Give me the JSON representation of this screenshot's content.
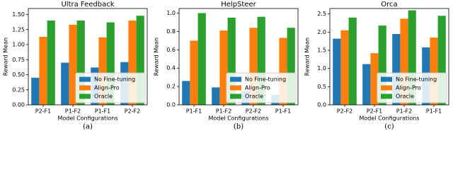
{
  "chart_data": [
    {
      "type": "bar",
      "title": "Ultra Feedback",
      "caption": "(a)",
      "x_label": "Model Configurations",
      "y_label": "Reward Mean",
      "categories": [
        "P2-F1",
        "P1-F2",
        "P1-F1",
        "P2-F2"
      ],
      "series": [
        {
          "name": "No Fine-tuning",
          "color": "#1f77b4",
          "values": [
            0.45,
            0.7,
            0.62,
            0.71
          ]
        },
        {
          "name": "Align-Pro",
          "color": "#ff7f0e",
          "values": [
            1.13,
            1.33,
            1.12,
            1.4
          ]
        },
        {
          "name": "Oracle",
          "color": "#2ca02c",
          "values": [
            1.4,
            1.4,
            1.37,
            1.48
          ]
        }
      ],
      "ylim": [
        0,
        1.6
      ],
      "yticks": [
        {
          "value": 0,
          "label": "0.00"
        },
        0.25,
        {
          "value": 0.5,
          "label": "0.50"
        },
        0.75,
        {
          "value": 1,
          "label": "1.00"
        },
        1.25,
        {
          "value": 1.5,
          "label": "1.50"
        }
      ],
      "legend": "lower right"
    },
    {
      "type": "bar",
      "title": "HelpSteer",
      "caption": "(b)",
      "x_label": "Model Configurations",
      "y_label": "Reward Mean",
      "categories": [
        "P1-F1",
        "P1-F2",
        "P2-F2",
        "P1-F1"
      ],
      "series": [
        {
          "name": "No Fine-tuning",
          "color": "#1f77b4",
          "values": [
            0.26,
            0.19,
            0.15,
            0.11
          ]
        },
        {
          "name": "Align-Pro",
          "color": "#ff7f0e",
          "values": [
            0.7,
            0.81,
            0.84,
            0.73
          ]
        },
        {
          "name": "Oracle",
          "color": "#2ca02c",
          "values": [
            1.0,
            0.95,
            0.96,
            0.84
          ]
        }
      ],
      "ylim": [
        0,
        1.05
      ],
      "yticks": [
        {
          "value": 0,
          "label": "0.0"
        },
        0.2,
        0.4,
        0.6,
        0.8,
        {
          "value": 1,
          "label": "1.0"
        }
      ],
      "legend": "lower right"
    },
    {
      "type": "bar",
      "title": "Orca",
      "caption": "(c)",
      "x_label": "Model Configurations",
      "y_label": "Reward Mean",
      "categories": [
        "P2-F2",
        "P2-F1",
        "P1-F2",
        "P1-F1"
      ],
      "series": [
        {
          "name": "No Fine-tuning",
          "color": "#1f77b4",
          "values": [
            1.82,
            1.12,
            1.95,
            1.58
          ]
        },
        {
          "name": "Align-Pro",
          "color": "#ff7f0e",
          "values": [
            2.05,
            1.42,
            2.37,
            1.85
          ]
        },
        {
          "name": "Oracle",
          "color": "#2ca02c",
          "values": [
            2.4,
            2.18,
            2.6,
            2.45
          ]
        }
      ],
      "ylim": [
        0,
        2.65
      ],
      "yticks": [
        {
          "value": 0,
          "label": "0.0"
        },
        0.5,
        {
          "value": 1,
          "label": "1.0"
        },
        1.5,
        {
          "value": 2,
          "label": "2.0"
        },
        2.5
      ],
      "legend": "lower right"
    }
  ]
}
